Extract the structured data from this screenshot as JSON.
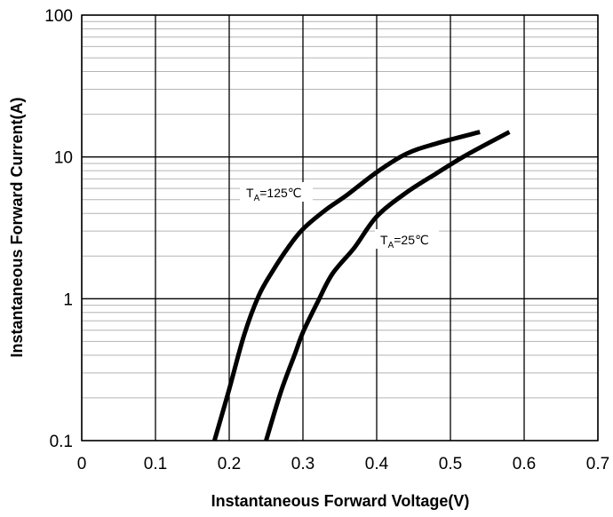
{
  "chart_data": {
    "type": "line",
    "xlabel": "Instantaneous Forward Voltage(V)",
    "ylabel": "Instantaneous Forward Current(A)",
    "x_scale": "linear",
    "y_scale": "log",
    "xlim": [
      0,
      0.7
    ],
    "ylim": [
      0.1,
      100
    ],
    "x_ticks": [
      0,
      0.1,
      0.2,
      0.3,
      0.4,
      0.5,
      0.6,
      0.7
    ],
    "x_tick_labels": [
      "0",
      "0.1",
      "0.2",
      "0.3",
      "0.4",
      "0.5",
      "0.6",
      "0.7"
    ],
    "y_ticks": [
      0.1,
      1,
      10,
      100
    ],
    "y_tick_labels": [
      "0.1",
      "1",
      "10",
      "100"
    ],
    "grid": true,
    "series": [
      {
        "label_main": "T",
        "label_sub": "A",
        "label_rest": "=125℃",
        "color": "#000000",
        "points": [
          [
            0.18,
            0.1
          ],
          [
            0.2,
            0.23
          ],
          [
            0.22,
            0.55
          ],
          [
            0.24,
            1.05
          ],
          [
            0.26,
            1.6
          ],
          [
            0.28,
            2.3
          ],
          [
            0.3,
            3.1
          ],
          [
            0.33,
            4.2
          ],
          [
            0.36,
            5.4
          ],
          [
            0.4,
            7.8
          ],
          [
            0.44,
            10.5
          ],
          [
            0.48,
            12.4
          ],
          [
            0.54,
            15
          ]
        ]
      },
      {
        "label_main": "T",
        "label_sub": "A",
        "label_rest": "=25℃",
        "color": "#000000",
        "points": [
          [
            0.25,
            0.1
          ],
          [
            0.27,
            0.22
          ],
          [
            0.29,
            0.42
          ],
          [
            0.3,
            0.58
          ],
          [
            0.32,
            0.95
          ],
          [
            0.34,
            1.5
          ],
          [
            0.37,
            2.3
          ],
          [
            0.4,
            3.8
          ],
          [
            0.44,
            5.6
          ],
          [
            0.48,
            7.6
          ],
          [
            0.52,
            10.2
          ],
          [
            0.58,
            15
          ]
        ]
      }
    ]
  }
}
